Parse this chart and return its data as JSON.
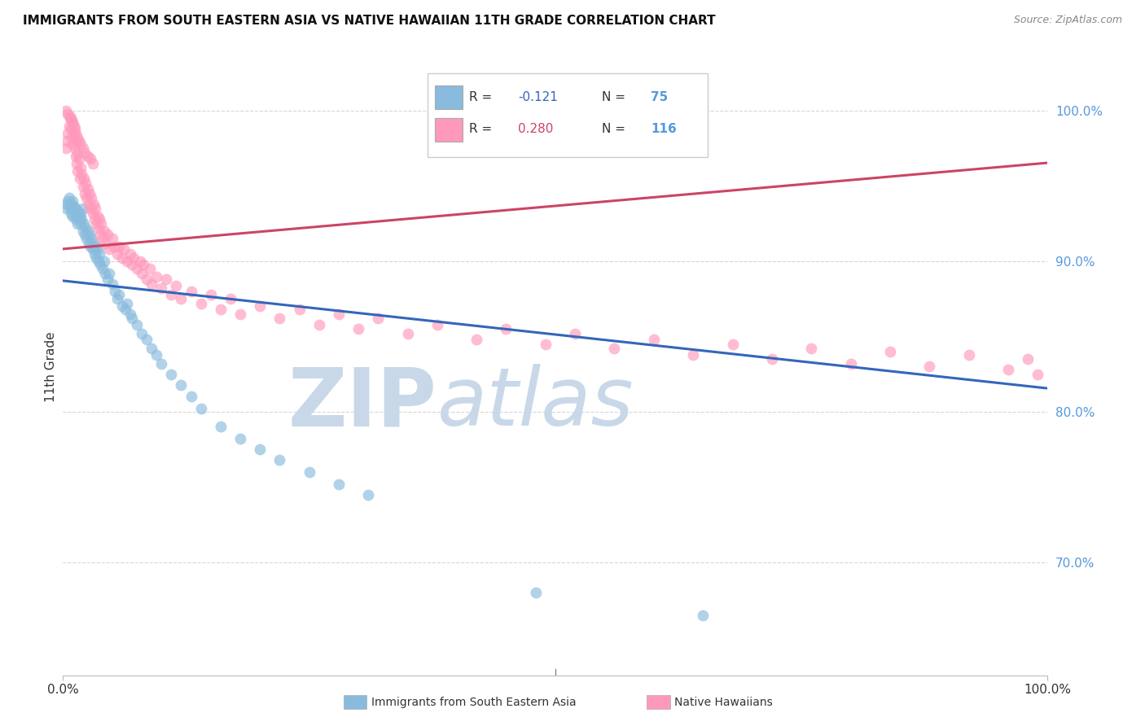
{
  "title": "IMMIGRANTS FROM SOUTH EASTERN ASIA VS NATIVE HAWAIIAN 11TH GRADE CORRELATION CHART",
  "source": "Source: ZipAtlas.com",
  "ylabel": "11th Grade",
  "ytick_labels": [
    "100.0%",
    "90.0%",
    "80.0%",
    "70.0%"
  ],
  "ytick_values": [
    1.0,
    0.9,
    0.8,
    0.7
  ],
  "xlim": [
    0.0,
    1.0
  ],
  "ylim": [
    0.625,
    1.035
  ],
  "r_blue": -0.121,
  "r_pink": 0.28,
  "n_blue": 75,
  "n_pink": 116,
  "blue_color": "#88BBDD",
  "pink_color": "#FF99BB",
  "blue_line_color": "#3366BB",
  "pink_line_color": "#CC4466",
  "watermark_color": "#C8D8E8",
  "background_color": "#FFFFFF",
  "grid_color": "#CCCCCC",
  "right_axis_color": "#5599DD",
  "blue_scatter_x": [
    0.003,
    0.004,
    0.005,
    0.006,
    0.007,
    0.008,
    0.008,
    0.009,
    0.01,
    0.01,
    0.011,
    0.012,
    0.013,
    0.013,
    0.014,
    0.015,
    0.015,
    0.016,
    0.017,
    0.018,
    0.018,
    0.019,
    0.02,
    0.02,
    0.021,
    0.022,
    0.023,
    0.024,
    0.025,
    0.026,
    0.027,
    0.028,
    0.029,
    0.03,
    0.031,
    0.032,
    0.033,
    0.034,
    0.035,
    0.036,
    0.037,
    0.038,
    0.04,
    0.042,
    0.043,
    0.045,
    0.047,
    0.05,
    0.053,
    0.055,
    0.057,
    0.06,
    0.063,
    0.065,
    0.068,
    0.07,
    0.075,
    0.08,
    0.085,
    0.09,
    0.095,
    0.1,
    0.11,
    0.12,
    0.13,
    0.14,
    0.16,
    0.18,
    0.2,
    0.22,
    0.25,
    0.28,
    0.31,
    0.48,
    0.65
  ],
  "blue_scatter_y": [
    0.935,
    0.938,
    0.94,
    0.942,
    0.936,
    0.932,
    0.935,
    0.938,
    0.93,
    0.94,
    0.936,
    0.932,
    0.928,
    0.935,
    0.93,
    0.933,
    0.925,
    0.93,
    0.928,
    0.925,
    0.932,
    0.928,
    0.92,
    0.935,
    0.925,
    0.918,
    0.922,
    0.915,
    0.92,
    0.912,
    0.918,
    0.91,
    0.915,
    0.908,
    0.912,
    0.905,
    0.91,
    0.902,
    0.908,
    0.9,
    0.905,
    0.898,
    0.895,
    0.9,
    0.892,
    0.888,
    0.892,
    0.885,
    0.88,
    0.875,
    0.878,
    0.87,
    0.868,
    0.872,
    0.865,
    0.862,
    0.858,
    0.852,
    0.848,
    0.842,
    0.838,
    0.832,
    0.825,
    0.818,
    0.81,
    0.802,
    0.79,
    0.782,
    0.775,
    0.768,
    0.76,
    0.752,
    0.745,
    0.68,
    0.665
  ],
  "pink_scatter_x": [
    0.003,
    0.004,
    0.005,
    0.006,
    0.007,
    0.008,
    0.009,
    0.01,
    0.01,
    0.011,
    0.012,
    0.013,
    0.013,
    0.014,
    0.015,
    0.015,
    0.016,
    0.017,
    0.018,
    0.019,
    0.02,
    0.021,
    0.022,
    0.023,
    0.024,
    0.025,
    0.026,
    0.027,
    0.028,
    0.029,
    0.03,
    0.031,
    0.032,
    0.033,
    0.034,
    0.035,
    0.036,
    0.037,
    0.038,
    0.039,
    0.04,
    0.042,
    0.043,
    0.045,
    0.047,
    0.05,
    0.052,
    0.055,
    0.057,
    0.06,
    0.062,
    0.065,
    0.068,
    0.07,
    0.072,
    0.075,
    0.078,
    0.08,
    0.082,
    0.085,
    0.088,
    0.09,
    0.095,
    0.1,
    0.105,
    0.11,
    0.115,
    0.12,
    0.13,
    0.14,
    0.15,
    0.16,
    0.17,
    0.18,
    0.2,
    0.22,
    0.24,
    0.26,
    0.28,
    0.3,
    0.32,
    0.35,
    0.38,
    0.42,
    0.45,
    0.49,
    0.52,
    0.56,
    0.6,
    0.64,
    0.68,
    0.72,
    0.76,
    0.8,
    0.84,
    0.88,
    0.92,
    0.96,
    0.98,
    0.99,
    0.003,
    0.005,
    0.007,
    0.009,
    0.01,
    0.011,
    0.012,
    0.013,
    0.015,
    0.016,
    0.018,
    0.02,
    0.022,
    0.025,
    0.028,
    0.03
  ],
  "pink_scatter_y": [
    0.975,
    0.98,
    0.985,
    0.99,
    0.995,
    0.988,
    0.982,
    0.978,
    0.992,
    0.985,
    0.975,
    0.97,
    0.98,
    0.965,
    0.972,
    0.96,
    0.968,
    0.955,
    0.962,
    0.958,
    0.95,
    0.955,
    0.945,
    0.952,
    0.942,
    0.948,
    0.938,
    0.945,
    0.935,
    0.942,
    0.932,
    0.938,
    0.928,
    0.935,
    0.925,
    0.93,
    0.922,
    0.928,
    0.918,
    0.925,
    0.915,
    0.92,
    0.912,
    0.918,
    0.908,
    0.915,
    0.91,
    0.905,
    0.91,
    0.902,
    0.908,
    0.9,
    0.905,
    0.898,
    0.902,
    0.895,
    0.9,
    0.892,
    0.898,
    0.888,
    0.895,
    0.885,
    0.89,
    0.882,
    0.888,
    0.878,
    0.884,
    0.875,
    0.88,
    0.872,
    0.878,
    0.868,
    0.875,
    0.865,
    0.87,
    0.862,
    0.868,
    0.858,
    0.865,
    0.855,
    0.862,
    0.852,
    0.858,
    0.848,
    0.855,
    0.845,
    0.852,
    0.842,
    0.848,
    0.838,
    0.845,
    0.835,
    0.842,
    0.832,
    0.84,
    0.83,
    0.838,
    0.828,
    0.835,
    0.825,
    1.0,
    0.998,
    0.996,
    0.994,
    0.992,
    0.99,
    0.988,
    0.985,
    0.982,
    0.98,
    0.978,
    0.975,
    0.972,
    0.97,
    0.968,
    0.965
  ]
}
